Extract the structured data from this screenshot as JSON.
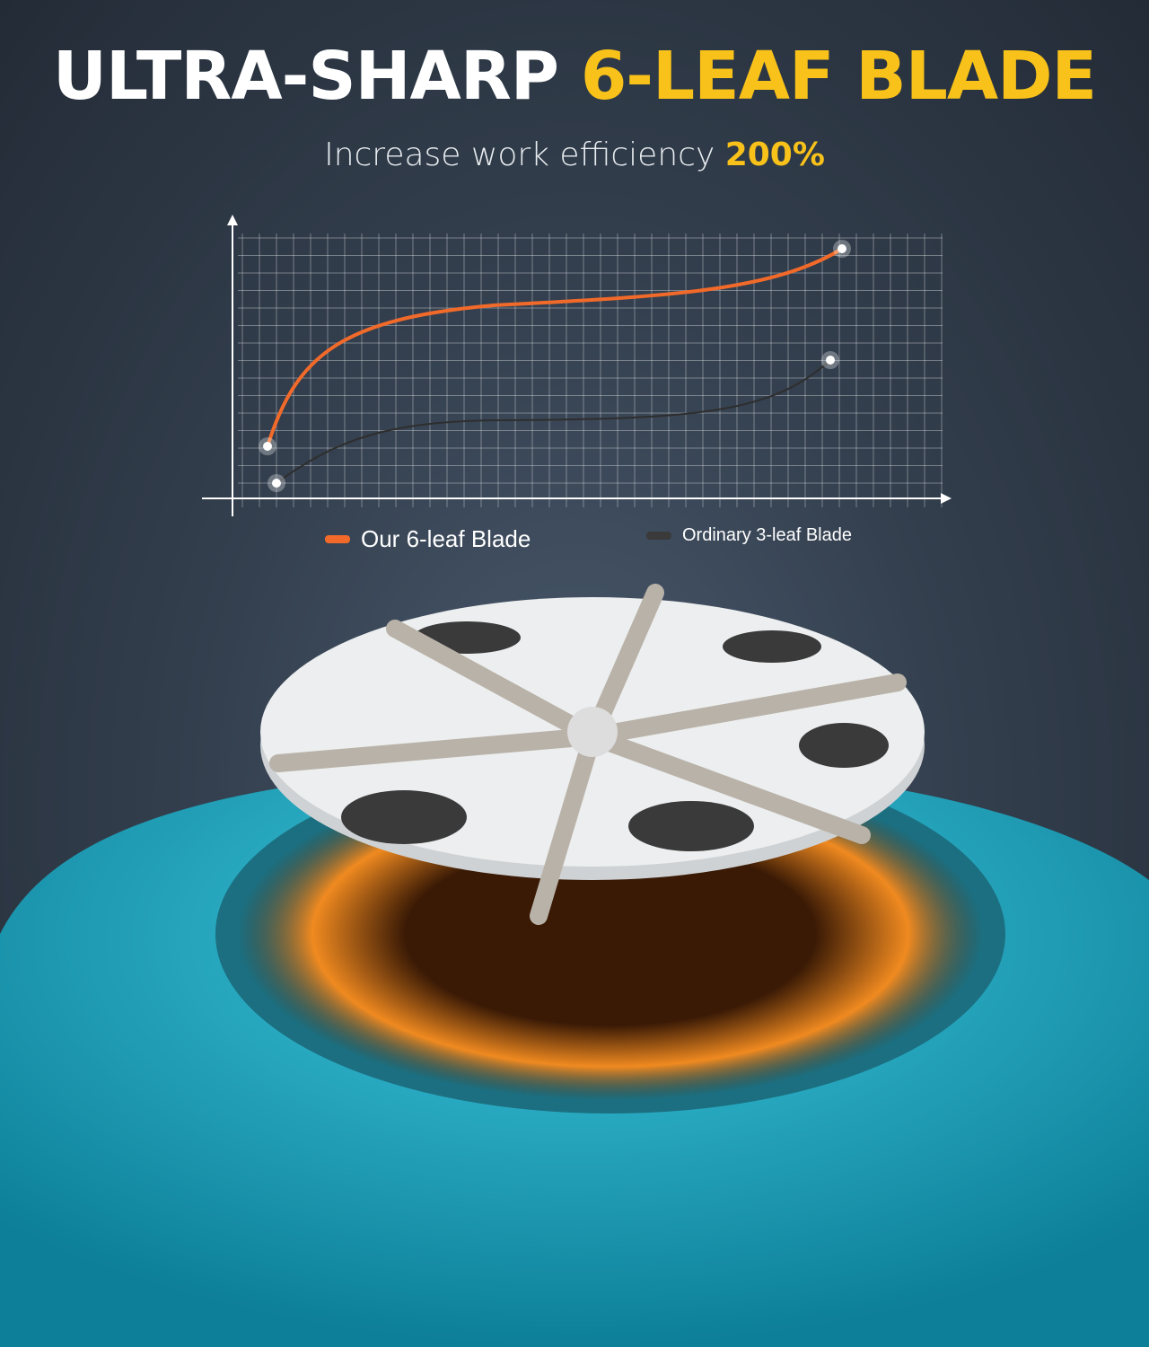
{
  "headline": {
    "part1": "ULTRA-SHARP ",
    "part2": "6-LEAF BLADE"
  },
  "subtitle": {
    "text": "Increase work efficiency ",
    "highlight": "200%"
  },
  "legend": [
    {
      "label": "Our 6-leaf Blade",
      "color": "#f26a2a"
    },
    {
      "label": "Ordinary 3-leaf Blade",
      "color": "#3a3a3a"
    }
  ],
  "colors": {
    "accent": "#f8c21a",
    "body": "#1fa9c4"
  }
}
